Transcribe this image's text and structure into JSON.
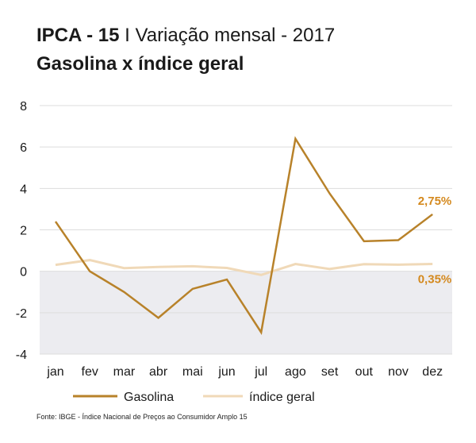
{
  "header": {
    "title_bold": "IPCA - 15",
    "title_rest": " I Variação mensal - 2017",
    "subtitle": "Gasolina x índice geral"
  },
  "source": "Fonte: IBGE - Índice Nacional de Preços ao Consumidor Amplo 15",
  "colors": {
    "gasolina": "#b8822a",
    "indice": "#f0d9b8",
    "label": "#d4891e",
    "negative_band": "#ececf0",
    "grid": "#dddddd"
  },
  "chart_data": {
    "type": "line",
    "title": "",
    "xlabel": "",
    "ylabel": "",
    "categories": [
      "jan",
      "fev",
      "mar",
      "abr",
      "mai",
      "jun",
      "jul",
      "ago",
      "set",
      "out",
      "nov",
      "dez"
    ],
    "yticks": [
      8,
      6,
      4,
      2,
      0,
      -2,
      -4
    ],
    "ylim": [
      -4,
      8
    ],
    "grid": true,
    "legend_position": "bottom-left",
    "series": [
      {
        "name": "Gasolina",
        "values": [
          2.4,
          0.0,
          -1.0,
          -2.25,
          -0.85,
          -0.4,
          -2.95,
          6.4,
          3.75,
          1.45,
          1.5,
          2.75
        ],
        "end_label": "2,75%"
      },
      {
        "name": "índice geral",
        "values": [
          0.31,
          0.54,
          0.15,
          0.21,
          0.24,
          0.16,
          -0.18,
          0.35,
          0.11,
          0.34,
          0.32,
          0.35
        ],
        "end_label": "0,35%"
      }
    ]
  }
}
